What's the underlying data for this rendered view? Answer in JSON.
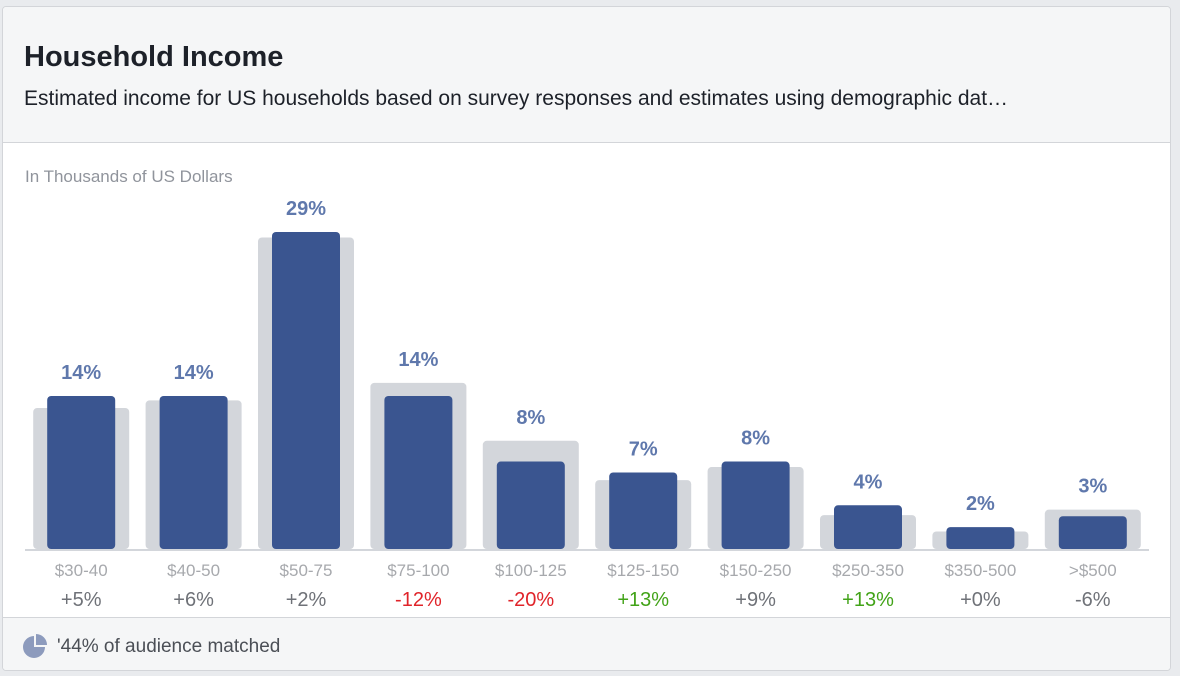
{
  "header": {
    "title": "Household Income",
    "subtitle": "Estimated income for US households based on survey responses and estimates using demographic dat…"
  },
  "footer": {
    "icon": "pie-chart-icon",
    "text": "'44% of audience matched"
  },
  "colors": {
    "audience_bar": "#3a5590",
    "benchmark_bar": "#d3d6db",
    "value_label": "#5f78ac",
    "category_label": "#a7a9ad",
    "delta_neutral": "#6f7278",
    "delta_negative": "#e0242a",
    "delta_positive": "#42a318"
  },
  "chart_data": {
    "type": "bar",
    "unit_label": "In Thousands of US Dollars",
    "categories": [
      "$30-40",
      "$40-50",
      "$50-75",
      "$75-100",
      "$100-125",
      "$125-150",
      "$150-250",
      "$250-350",
      "$350-500",
      ">$500"
    ],
    "series": [
      {
        "values": [
          14,
          14,
          29,
          14,
          8,
          7,
          8,
          4,
          2,
          3
        ],
        "labels": [
          "14%",
          "14%",
          "29%",
          "14%",
          "8%",
          "7%",
          "8%",
          "4%",
          "2%",
          "3%"
        ]
      },
      {
        "values": [
          12.9,
          13.6,
          28.5,
          15.2,
          9.9,
          6.3,
          7.5,
          3.1,
          1.6,
          3.6
        ]
      }
    ],
    "deltas": [
      "+5%",
      "+6%",
      "+2%",
      "-12%",
      "-20%",
      "+13%",
      "+9%",
      "+13%",
      "+0%",
      "-6%"
    ],
    "delta_types": [
      "neutral",
      "neutral",
      "neutral",
      "negative",
      "negative",
      "positive",
      "neutral",
      "positive",
      "neutral",
      "neutral"
    ],
    "ylim": [
      0,
      29
    ],
    "grid": false,
    "legend": "none"
  }
}
